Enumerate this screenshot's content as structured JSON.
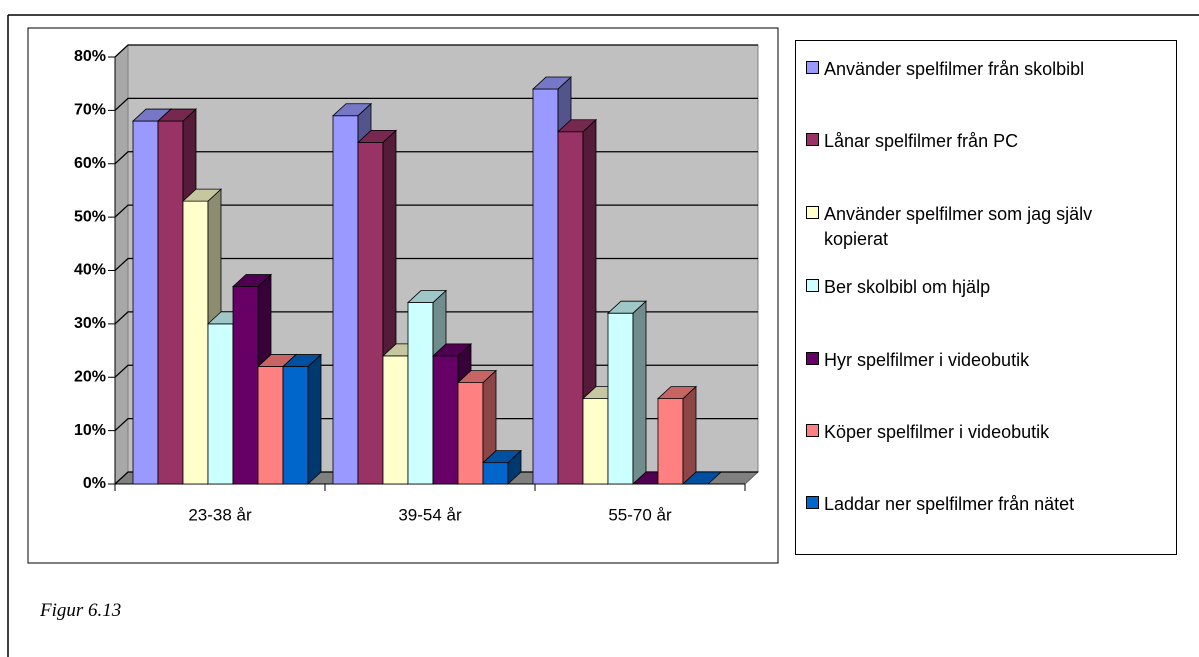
{
  "chart_data": {
    "type": "bar3d",
    "caption": "Figur 6.13",
    "categories": [
      "23-38 år",
      "39-54 år",
      "55-70 år"
    ],
    "series": [
      {
        "name": "Använder spelfilmer från skolbibl",
        "color": "#9999ff",
        "values": [
          68,
          69,
          74
        ]
      },
      {
        "name": "Lånar spelfilmer från PC",
        "color": "#993366",
        "values": [
          68,
          64,
          66
        ]
      },
      {
        "name": "Använder spelfilmer som jag själv kopierat",
        "color": "#ffffcc",
        "values": [
          53,
          24,
          16
        ]
      },
      {
        "name": "Ber skolbibl om hjälp",
        "color": "#ccffff",
        "values": [
          30,
          34,
          32
        ]
      },
      {
        "name": "Hyr spelfilmer i videobutik",
        "color": "#660066",
        "values": [
          37,
          24,
          0
        ]
      },
      {
        "name": "Köper spelfilmer i videobutik",
        "color": "#ff8080",
        "values": [
          22,
          19,
          16
        ]
      },
      {
        "name": "Laddar ner spelfilmer från nätet",
        "color": "#0066cc",
        "values": [
          22,
          4,
          0
        ]
      }
    ],
    "ylim": [
      0,
      80
    ],
    "yticks": [
      {
        "value": 0,
        "label": "0%"
      },
      {
        "value": 10,
        "label": "10%"
      },
      {
        "value": 20,
        "label": "20%"
      },
      {
        "value": 30,
        "label": "30%"
      },
      {
        "value": 40,
        "label": "40%"
      },
      {
        "value": 50,
        "label": "50%"
      },
      {
        "value": 60,
        "label": "60%"
      },
      {
        "value": 70,
        "label": "70%"
      },
      {
        "value": 80,
        "label": "80%"
      }
    ],
    "grid": true
  }
}
